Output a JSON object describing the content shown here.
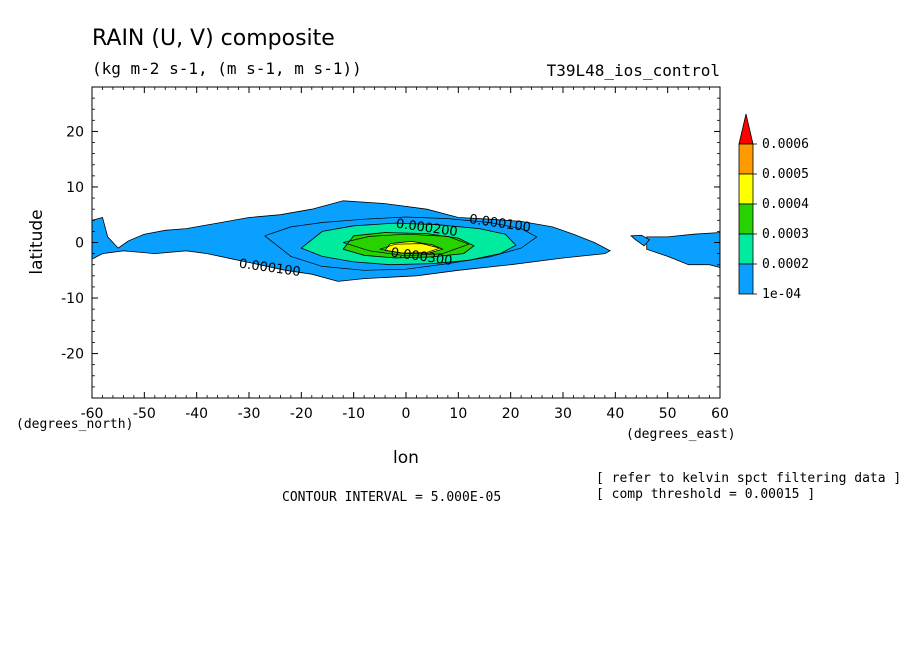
{
  "chart_data": {
    "type": "contour",
    "title": "RAIN (U, V) composite",
    "subtitle": "(kg m-2 s-1, (m s-1, m s-1))",
    "dataset": "T39L48_ios_control",
    "xlabel": "lon",
    "ylabel": "latitude",
    "x_unit_label": "(degrees_east)",
    "y_unit_label": "(degrees_north)",
    "xlim": [
      -60,
      60
    ],
    "ylim": [
      -28,
      28
    ],
    "x_ticks": [
      -60,
      -50,
      -40,
      -30,
      -20,
      -10,
      0,
      10,
      20,
      30,
      40,
      50,
      60
    ],
    "y_ticks": [
      -20,
      -10,
      0,
      10,
      20
    ],
    "contour_interval_text": "CONTOUR INTERVAL = 5.000E-05",
    "notes": [
      "[ refer to kelvin spct filtering data ]",
      "[ comp threshold = 0.00015 ]"
    ],
    "colorbar": {
      "labels": [
        "0.0006",
        "0.0005",
        "0.0004",
        "0.0003",
        "0.0002",
        "1e-04"
      ],
      "colors": [
        "#ff0000",
        "#ff9a00",
        "#ffff00",
        "#28d200",
        "#00eaa0",
        "#0aa0ff"
      ]
    },
    "contour_labels": [
      {
        "text": "0.000100",
        "lon": 12,
        "lat": 3.5
      },
      {
        "text": "0.000200",
        "lon": -2,
        "lat": 2.7
      },
      {
        "text": "0.000300",
        "lon": -3,
        "lat": -2.5
      },
      {
        "text": "0.000100",
        "lon": -32,
        "lat": -4.5
      }
    ],
    "regions": [
      {
        "level": "1e-04",
        "fill": "#0aa0ff",
        "points": [
          [
            -60,
            -3
          ],
          [
            -58,
            -2
          ],
          [
            -54,
            -1.5
          ],
          [
            -48,
            -2
          ],
          [
            -42,
            -1.5
          ],
          [
            -38,
            -2
          ],
          [
            -33,
            -3
          ],
          [
            -28,
            -4
          ],
          [
            -23,
            -5
          ],
          [
            -18,
            -5.7
          ],
          [
            -13,
            -7
          ],
          [
            -8,
            -6.5
          ],
          [
            2,
            -6
          ],
          [
            10,
            -5
          ],
          [
            20,
            -4
          ],
          [
            30,
            -2.8
          ],
          [
            38,
            -2
          ],
          [
            39,
            -1.5
          ],
          [
            36,
            0
          ],
          [
            32,
            1.5
          ],
          [
            28,
            2.8
          ],
          [
            22,
            3.8
          ],
          [
            16,
            4.2
          ],
          [
            10,
            4.5
          ],
          [
            4,
            6
          ],
          [
            -4,
            7
          ],
          [
            -12,
            7.5
          ],
          [
            -18,
            6
          ],
          [
            -24,
            5
          ],
          [
            -30,
            4.5
          ],
          [
            -36,
            3.5
          ],
          [
            -42,
            2.5
          ],
          [
            -46,
            2.2
          ],
          [
            -50,
            1.5
          ],
          [
            -53,
            0.3
          ],
          [
            -55,
            -1
          ],
          [
            -57,
            1
          ],
          [
            -58,
            4.5
          ],
          [
            -60,
            4
          ]
        ]
      },
      {
        "level": "1e-04",
        "fill": "#0aa0ff",
        "points": [
          [
            46,
            -1.2
          ],
          [
            50,
            -2.5
          ],
          [
            54,
            -4
          ],
          [
            58,
            -4
          ],
          [
            60,
            -4.5
          ],
          [
            60,
            1.8
          ],
          [
            55,
            1.5
          ],
          [
            50,
            1
          ],
          [
            46,
            1
          ]
        ]
      },
      {
        "level": "1e-04",
        "fill": "#0aa0ff",
        "points": [
          [
            43,
            1.2
          ],
          [
            44,
            0.4
          ],
          [
            45.5,
            -0.6
          ],
          [
            46.5,
            0.5
          ],
          [
            45,
            1.3
          ]
        ]
      },
      {
        "level": "0.0002",
        "fill": "#00eaa0",
        "points": [
          [
            -20,
            -1
          ],
          [
            -16,
            -2.5
          ],
          [
            -10,
            -3.5
          ],
          [
            -3,
            -4
          ],
          [
            5,
            -3.8
          ],
          [
            12,
            -3.2
          ],
          [
            18,
            -2
          ],
          [
            21,
            -0.5
          ],
          [
            19,
            1.5
          ],
          [
            14,
            2.5
          ],
          [
            6,
            3.2
          ],
          [
            -2,
            3.5
          ],
          [
            -10,
            3
          ],
          [
            -16,
            2
          ]
        ]
      },
      {
        "level": "0.0003",
        "fill": "#28d200",
        "points": [
          [
            -12,
            -1.2
          ],
          [
            -8,
            -2.3
          ],
          [
            -2,
            -2.8
          ],
          [
            5,
            -2.6
          ],
          [
            11,
            -2
          ],
          [
            13,
            -0.6
          ],
          [
            10,
            0.8
          ],
          [
            4,
            1.6
          ],
          [
            -4,
            1.8
          ],
          [
            -10,
            1.2
          ]
        ]
      },
      {
        "level": "0.0004",
        "fill": "#ffff00",
        "points": [
          [
            -4,
            -1.4
          ],
          [
            0,
            -2
          ],
          [
            4,
            -2
          ],
          [
            7,
            -1.2
          ],
          [
            5,
            -0.4
          ],
          [
            1,
            0.2
          ],
          [
            -3,
            -0.2
          ]
        ]
      }
    ],
    "contour_lines": [
      [
        [
          -27,
          1.2
        ],
        [
          -22,
          2.8
        ],
        [
          -16,
          3.6
        ],
        [
          -8,
          4.2
        ],
        [
          0,
          4.6
        ],
        [
          8,
          4.3
        ],
        [
          16,
          3.6
        ],
        [
          22,
          2.5
        ],
        [
          25,
          1
        ],
        [
          22,
          -1
        ],
        [
          16,
          -2.6
        ],
        [
          8,
          -3.8
        ],
        [
          0,
          -4.8
        ],
        [
          -8,
          -5
        ],
        [
          -16,
          -4.3
        ],
        [
          -22,
          -2.5
        ],
        [
          -27,
          1.2
        ]
      ],
      [
        [
          -12,
          0
        ],
        [
          -7,
          -1.5
        ],
        [
          0,
          -2.4
        ],
        [
          7,
          -2
        ],
        [
          12,
          -0.3
        ],
        [
          8,
          1.1
        ],
        [
          0,
          1.5
        ],
        [
          -7,
          1.1
        ],
        [
          -12,
          0
        ]
      ],
      [
        [
          -5,
          -1.2
        ],
        [
          -1,
          -1.9
        ],
        [
          4,
          -1.8
        ],
        [
          6.5,
          -1
        ],
        [
          3,
          -0.2
        ],
        [
          -2,
          -0.3
        ],
        [
          -5,
          -1.2
        ]
      ]
    ]
  }
}
